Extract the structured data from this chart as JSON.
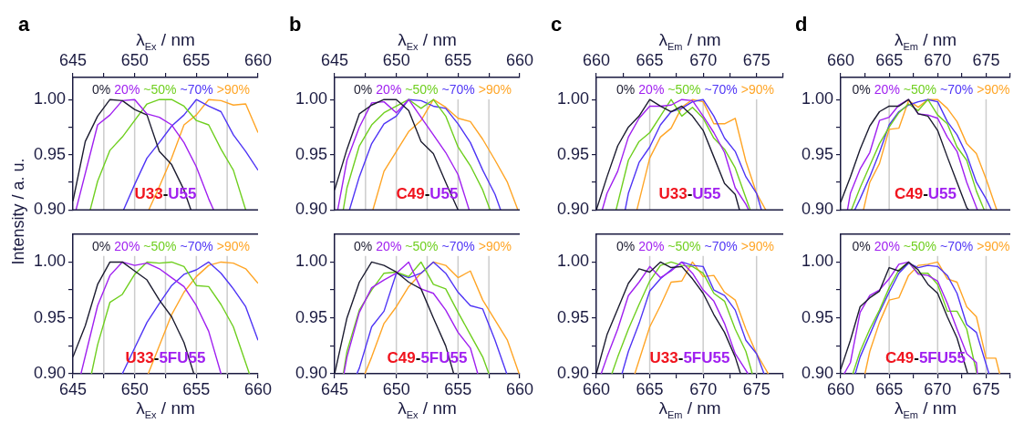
{
  "chart_data": [
    {
      "type": "line",
      "title": "a",
      "xlabel": "λ$_{Ex}$ / nm",
      "ylabel": "Intensity / a. u.",
      "xlim": [
        645,
        660
      ],
      "xticks": [
        645,
        {
          "value": 647.5,
          "label": null
        },
        650,
        {
          "value": 652.5,
          "label": null
        },
        655,
        {
          "value": 657.5,
          "label": null
        },
        660
      ],
      "ylim": [
        0.9,
        1.02
      ],
      "yticks": [
        {
          "value": 0.9,
          "label": "0.90"
        },
        {
          "value": 0.925,
          "label": null
        },
        {
          "value": 0.95,
          "label": "0.95"
        },
        {
          "value": 0.975,
          "label": null
        },
        {
          "value": 1.0,
          "label": "1.00"
        }
      ],
      "legend": "top",
      "marker": "none",
      "annotations": [
        "U33-U55"
      ],
      "ref_lines": [
        {
          "axis": "x",
          "value": 647.5,
          "color": "#cccccc"
        },
        {
          "axis": "x",
          "value": 650,
          "color": "#cccccc"
        },
        {
          "axis": "x",
          "value": 652.5,
          "color": "#cccccc"
        },
        {
          "axis": "x",
          "value": 655,
          "color": "#cccccc"
        },
        {
          "axis": "x",
          "value": 657.5,
          "color": "#cccccc"
        }
      ],
      "series": [
        {
          "name": "0%",
          "color": "#1c1c30",
          "x": [
            645,
            646,
            647,
            648,
            649,
            650,
            651,
            652,
            653,
            654,
            654.56
          ],
          "values": [
            0.908,
            0.962,
            0.985,
            1.0,
            0.999,
            0.991,
            0.986,
            0.953,
            0.941,
            0.918,
            0.9
          ]
        },
        {
          "name": "20%",
          "color": "#a020f0",
          "x": [
            645.25,
            647,
            648,
            649,
            650,
            651,
            652,
            653,
            654,
            655,
            656,
            656.4
          ],
          "values": [
            0.9,
            0.977,
            0.986,
            0.999,
            1.0,
            0.987,
            0.984,
            0.977,
            0.961,
            0.939,
            0.91,
            0.9
          ]
        },
        {
          "name": "~50%",
          "color": "#6fcf1f",
          "x": [
            646.4,
            647,
            648,
            649,
            650,
            651,
            652,
            653,
            654,
            655,
            656,
            657,
            658,
            659
          ],
          "values": [
            0.9,
            0.926,
            0.954,
            0.966,
            0.981,
            0.996,
            1.0,
            1.0,
            0.994,
            0.981,
            0.977,
            0.955,
            0.936,
            0.9
          ]
        },
        {
          "name": "~70%",
          "color": "#4f35f5",
          "x": [
            649.1,
            650,
            651,
            652,
            653,
            654,
            655,
            656,
            657,
            658,
            659,
            660
          ],
          "values": [
            0.9,
            0.923,
            0.947,
            0.961,
            0.976,
            0.986,
            1.0,
            0.994,
            0.989,
            0.968,
            0.953,
            0.936
          ]
        },
        {
          "name": ">90%",
          "color": "#ffa526",
          "x": [
            651.15,
            652,
            653,
            654,
            655,
            656,
            657,
            658,
            659,
            660
          ],
          "values": [
            0.9,
            0.921,
            0.947,
            0.977,
            0.986,
            1.0,
            0.999,
            0.995,
            0.996,
            0.97
          ]
        }
      ]
    },
    {
      "type": "line",
      "xlabel": "λ$_{Ex}$ / nm",
      "xlim": [
        645,
        660
      ],
      "xticks": [
        645,
        {
          "value": 647.5,
          "label": null
        },
        650,
        {
          "value": 652.5,
          "label": null
        },
        655,
        {
          "value": 657.5,
          "label": null
        },
        660
      ],
      "ylim": [
        0.9,
        1.025
      ],
      "yticks": [
        {
          "value": 0.9,
          "label": "0.90"
        },
        {
          "value": 0.925,
          "label": null
        },
        {
          "value": 0.95,
          "label": "0.95"
        },
        {
          "value": 0.975,
          "label": null
        },
        {
          "value": 1.0,
          "label": "1.00"
        }
      ],
      "legend": "top",
      "marker": "none",
      "annotations": [
        "U33-5FU55"
      ],
      "ref_lines": [
        {
          "axis": "x",
          "value": 647.5,
          "color": "#cccccc"
        },
        {
          "axis": "x",
          "value": 650,
          "color": "#cccccc"
        },
        {
          "axis": "x",
          "value": 652.5,
          "color": "#cccccc"
        },
        {
          "axis": "x",
          "value": 655,
          "color": "#cccccc"
        },
        {
          "axis": "x",
          "value": 657.5,
          "color": "#cccccc"
        }
      ],
      "series": [
        {
          "name": "0%",
          "color": "#1c1c30",
          "x": [
            645,
            646,
            647,
            648,
            649,
            650,
            651,
            652,
            653,
            654,
            654.8
          ],
          "values": [
            0.915,
            0.943,
            0.98,
            1.0,
            1.0,
            0.992,
            0.984,
            0.966,
            0.951,
            0.928,
            0.9
          ]
        },
        {
          "name": "20%",
          "color": "#a020f0",
          "x": [
            645.65,
            647,
            648,
            649,
            650,
            651,
            652,
            653,
            654,
            655,
            656,
            657
          ],
          "values": [
            0.9,
            0.961,
            0.988,
            1.0,
            0.997,
            0.999,
            0.994,
            0.986,
            0.978,
            0.961,
            0.938,
            0.9
          ]
        },
        {
          "name": "~50%",
          "color": "#6fcf1f",
          "x": [
            646.5,
            647,
            648,
            649,
            650,
            651,
            652,
            653,
            654,
            655,
            656,
            657,
            658,
            659.3
          ],
          "values": [
            0.9,
            0.926,
            0.964,
            0.971,
            0.989,
            1.0,
            0.999,
            1.0,
            0.996,
            0.979,
            0.978,
            0.962,
            0.942,
            0.9
          ]
        },
        {
          "name": "~70%",
          "color": "#4f35f5",
          "x": [
            649,
            650,
            651,
            652,
            653,
            654,
            655,
            656,
            657,
            658,
            659,
            660
          ],
          "values": [
            0.9,
            0.923,
            0.946,
            0.963,
            0.979,
            0.989,
            0.993,
            1.0,
            0.99,
            0.976,
            0.96,
            0.93
          ]
        },
        {
          "name": ">90%",
          "color": "#ffa526",
          "x": [
            651.1,
            652,
            653,
            654,
            655,
            656,
            657,
            658,
            659,
            660
          ],
          "values": [
            0.9,
            0.925,
            0.953,
            0.973,
            0.987,
            0.997,
            1.0,
            0.999,
            0.994,
            0.981
          ]
        }
      ]
    },
    {
      "type": "line",
      "title": "b",
      "xlabel": "λ$_{Ex}$ / nm",
      "xlim": [
        645,
        660
      ],
      "xticks": [
        645,
        {
          "value": 647.5,
          "label": null
        },
        650,
        {
          "value": 652.5,
          "label": null
        },
        655,
        {
          "value": 657.5,
          "label": null
        },
        660
      ],
      "ylim": [
        0.9,
        1.02
      ],
      "yticks": [
        {
          "value": 0.9,
          "label": "0.90"
        },
        {
          "value": 0.925,
          "label": null
        },
        {
          "value": 0.95,
          "label": "0.95"
        },
        {
          "value": 0.975,
          "label": null
        },
        {
          "value": 1.0,
          "label": "1.00"
        }
      ],
      "legend": "top",
      "marker": "none",
      "annotations": [
        "C49-U55"
      ],
      "ref_lines": [
        {
          "axis": "x",
          "value": 647.5,
          "color": "#cccccc"
        },
        {
          "axis": "x",
          "value": 650,
          "color": "#cccccc"
        },
        {
          "axis": "x",
          "value": 652.5,
          "color": "#cccccc"
        },
        {
          "axis": "x",
          "value": 655,
          "color": "#cccccc"
        },
        {
          "axis": "x",
          "value": 657.5,
          "color": "#cccccc"
        }
      ],
      "series": [
        {
          "name": "0%",
          "color": "#1c1c30",
          "x": [
            645,
            646,
            647,
            648,
            649,
            650,
            651,
            652,
            653,
            654,
            655
          ],
          "values": [
            0.918,
            0.955,
            0.987,
            0.995,
            1.0,
            1.0,
            0.99,
            0.962,
            0.951,
            0.925,
            0.9
          ]
        },
        {
          "name": "20%",
          "color": "#a020f0",
          "x": [
            645.25,
            646,
            647,
            648,
            649,
            650,
            651,
            652,
            653,
            654,
            655,
            655.9
          ],
          "values": [
            0.9,
            0.945,
            0.975,
            0.997,
            0.998,
            0.988,
            1.0,
            0.984,
            0.968,
            0.952,
            0.932,
            0.9
          ]
        },
        {
          "name": "~50%",
          "color": "#6fcf1f",
          "x": [
            645.7,
            646,
            647,
            648,
            649,
            650,
            651,
            652,
            653,
            654,
            655,
            656,
            657,
            657.6
          ],
          "values": [
            0.9,
            0.92,
            0.958,
            0.977,
            0.988,
            0.994,
            1.0,
            0.992,
            1.0,
            0.985,
            0.957,
            0.94,
            0.918,
            0.9
          ]
        },
        {
          "name": "~70%",
          "color": "#4f35f5",
          "x": [
            646.2,
            647,
            648,
            649,
            650,
            651,
            652,
            653,
            654,
            655,
            656,
            657,
            658,
            658.45
          ],
          "values": [
            0.9,
            0.93,
            0.96,
            0.978,
            0.985,
            1.0,
            0.999,
            0.994,
            0.992,
            0.978,
            0.961,
            0.936,
            0.914,
            0.9
          ]
        },
        {
          "name": ">90%",
          "color": "#ffa526",
          "x": [
            648.1,
            649,
            650,
            651,
            652,
            653,
            654,
            655,
            656,
            657,
            658,
            659,
            659.85
          ],
          "values": [
            0.9,
            0.935,
            0.953,
            0.971,
            0.981,
            1.0,
            0.993,
            0.983,
            0.98,
            0.964,
            0.945,
            0.925,
            0.9
          ]
        }
      ]
    },
    {
      "type": "line",
      "xlabel": "λ$_{Ex}$ / nm",
      "xlim": [
        645,
        660
      ],
      "xticks": [
        645,
        {
          "value": 647.5,
          "label": null
        },
        650,
        {
          "value": 652.5,
          "label": null
        },
        655,
        {
          "value": 657.5,
          "label": null
        },
        660
      ],
      "ylim": [
        0.9,
        1.025
      ],
      "yticks": [
        {
          "value": 0.9,
          "label": "0.90"
        },
        {
          "value": 0.925,
          "label": null
        },
        {
          "value": 0.95,
          "label": "0.95"
        },
        {
          "value": 0.975,
          "label": null
        },
        {
          "value": 1.0,
          "label": "1.00"
        }
      ],
      "legend": "top",
      "marker": "none",
      "annotations": [
        "C49-5FU55"
      ],
      "ref_lines": [
        {
          "axis": "x",
          "value": 647.5,
          "color": "#cccccc"
        },
        {
          "axis": "x",
          "value": 650,
          "color": "#cccccc"
        },
        {
          "axis": "x",
          "value": 652.5,
          "color": "#cccccc"
        },
        {
          "axis": "x",
          "value": 655,
          "color": "#cccccc"
        },
        {
          "axis": "x",
          "value": 657.5,
          "color": "#cccccc"
        }
      ],
      "series": [
        {
          "name": "0%",
          "color": "#1c1c30",
          "x": [
            645,
            646,
            647,
            648,
            649,
            650,
            651,
            652,
            653,
            654,
            654.65
          ],
          "values": [
            0.9,
            0.95,
            0.982,
            1.0,
            0.997,
            0.991,
            0.982,
            0.976,
            0.95,
            0.925,
            0.9
          ]
        },
        {
          "name": "20%",
          "color": "#a020f0",
          "x": [
            645.75,
            646,
            647,
            648,
            649,
            650,
            651,
            652,
            653,
            654,
            655,
            656,
            656.6
          ],
          "values": [
            0.9,
            0.915,
            0.955,
            0.977,
            0.984,
            0.99,
            1.0,
            0.976,
            0.972,
            0.957,
            0.937,
            0.923,
            0.9
          ]
        },
        {
          "name": "~50%",
          "color": "#6fcf1f",
          "x": [
            645.7,
            646,
            647,
            648,
            649,
            650,
            651,
            652,
            653,
            654,
            655,
            656,
            657,
            657.5
          ],
          "values": [
            0.9,
            0.92,
            0.957,
            0.975,
            0.99,
            0.991,
            0.987,
            1.0,
            0.98,
            0.976,
            0.955,
            0.935,
            0.915,
            0.9
          ]
        },
        {
          "name": "~70%",
          "color": "#4f35f5",
          "x": [
            646.8,
            647,
            648,
            649,
            650,
            651,
            652,
            653,
            654,
            655,
            656,
            657,
            658,
            658.95
          ],
          "values": [
            0.9,
            0.905,
            0.942,
            0.956,
            0.99,
            0.986,
            0.99,
            1.0,
            0.99,
            0.973,
            0.961,
            0.958,
            0.93,
            0.9
          ]
        },
        {
          "name": ">90%",
          "color": "#ffa526",
          "x": [
            647.45,
            648,
            649,
            650,
            651,
            652,
            653,
            654,
            655,
            656,
            657,
            658,
            659,
            659.95
          ],
          "values": [
            0.9,
            0.915,
            0.945,
            0.96,
            0.978,
            0.99,
            1.0,
            0.997,
            0.986,
            0.992,
            0.966,
            0.948,
            0.93,
            0.9
          ]
        }
      ]
    },
    {
      "type": "line",
      "title": "c",
      "xlabel": "λ$_{Em}$ / nm",
      "xlim": [
        660,
        677.5
      ],
      "xticks": [
        660,
        {
          "value": 662.5,
          "label": null
        },
        665,
        {
          "value": 667.5,
          "label": null
        },
        670,
        {
          "value": 672.5,
          "label": null
        },
        675,
        {
          "value": 677.5,
          "label": null
        }
      ],
      "ylim": [
        0.9,
        1.02
      ],
      "yticks": [
        {
          "value": 0.9,
          "label": "0.90"
        },
        {
          "value": 0.925,
          "label": null
        },
        {
          "value": 0.95,
          "label": "0.95"
        },
        {
          "value": 0.975,
          "label": null
        },
        {
          "value": 1.0,
          "label": "1.00"
        }
      ],
      "legend": "top",
      "marker": "none",
      "annotations": [
        "U33-U55"
      ],
      "ref_lines": [
        {
          "axis": "x",
          "value": 665,
          "color": "#cccccc"
        },
        {
          "axis": "x",
          "value": 670,
          "color": "#cccccc"
        },
        {
          "axis": "x",
          "value": 675,
          "color": "#cccccc"
        }
      ],
      "series": [
        {
          "name": "0%",
          "color": "#1c1c30",
          "x": [
            660,
            661,
            662,
            663,
            664,
            665,
            666,
            667,
            668,
            669,
            670,
            671,
            672,
            673,
            673.4
          ],
          "values": [
            0.9,
            0.93,
            0.958,
            0.975,
            0.985,
            1.0,
            0.994,
            0.989,
            0.994,
            0.985,
            0.972,
            0.948,
            0.924,
            0.914,
            0.9
          ]
        },
        {
          "name": "20%",
          "color": "#a020f0",
          "x": [
            660.55,
            661,
            662,
            663,
            664,
            665,
            666,
            667,
            668,
            669,
            670,
            671,
            672,
            673,
            674,
            674.25
          ],
          "values": [
            0.9,
            0.915,
            0.935,
            0.966,
            0.983,
            0.994,
            0.994,
            0.995,
            1.0,
            0.999,
            0.985,
            0.97,
            0.952,
            0.92,
            0.905,
            0.9
          ]
        },
        {
          "name": "~50%",
          "color": "#6fcf1f",
          "x": [
            661.85,
            663,
            664,
            665,
            666,
            667,
            668,
            669,
            670,
            671,
            672,
            673,
            674.4
          ],
          "values": [
            0.9,
            0.945,
            0.962,
            0.97,
            0.985,
            1.0,
            0.985,
            0.993,
            0.983,
            0.965,
            0.955,
            0.938,
            0.9
          ]
        },
        {
          "name": "~70%",
          "color": "#4f35f5",
          "x": [
            662.7,
            663,
            664,
            665,
            666,
            667,
            668,
            669,
            670,
            671,
            672,
            673,
            674,
            675,
            675.45
          ],
          "values": [
            0.9,
            0.915,
            0.943,
            0.957,
            0.977,
            0.989,
            0.992,
            0.998,
            1.0,
            0.985,
            0.965,
            0.953,
            0.93,
            0.915,
            0.9
          ]
        },
        {
          "name": ">90%",
          "color": "#ffa526",
          "x": [
            663.8,
            665,
            666,
            667,
            668,
            669,
            670,
            671,
            672,
            673,
            674,
            675,
            675.85
          ],
          "values": [
            0.9,
            0.947,
            0.966,
            0.974,
            0.993,
            1.0,
            0.998,
            0.978,
            0.978,
            0.983,
            0.944,
            0.915,
            0.9
          ]
        }
      ]
    },
    {
      "type": "line",
      "xlabel": "λ$_{Em}$ / nm",
      "xlim": [
        660,
        677.5
      ],
      "xticks": [
        660,
        {
          "value": 662.5,
          "label": null
        },
        665,
        {
          "value": 667.5,
          "label": null
        },
        670,
        {
          "value": 672.5,
          "label": null
        },
        675,
        {
          "value": 677.5,
          "label": null
        }
      ],
      "ylim": [
        0.9,
        1.025
      ],
      "yticks": [
        {
          "value": 0.9,
          "label": "0.90"
        },
        {
          "value": 0.925,
          "label": null
        },
        {
          "value": 0.95,
          "label": "0.95"
        },
        {
          "value": 0.975,
          "label": null
        },
        {
          "value": 1.0,
          "label": "1.00"
        }
      ],
      "legend": "top",
      "marker": "none",
      "annotations": [
        "U33-5FU55"
      ],
      "ref_lines": [
        {
          "axis": "x",
          "value": 665,
          "color": "#cccccc"
        },
        {
          "axis": "x",
          "value": 670,
          "color": "#cccccc"
        },
        {
          "axis": "x",
          "value": 675,
          "color": "#cccccc"
        }
      ],
      "series": [
        {
          "name": "0%",
          "color": "#1c1c30",
          "x": [
            660,
            661,
            662,
            663,
            664,
            665,
            666,
            667,
            668,
            669,
            670,
            671,
            672,
            673,
            673.5
          ],
          "values": [
            0.9,
            0.935,
            0.958,
            0.981,
            0.994,
            0.991,
            1.0,
            0.995,
            0.996,
            0.985,
            0.972,
            0.953,
            0.937,
            0.915,
            0.9
          ]
        },
        {
          "name": "20%",
          "color": "#a020f0",
          "x": [
            660.45,
            661,
            662,
            663,
            664,
            665,
            666,
            667,
            668,
            669,
            670,
            671,
            672,
            673,
            674.2
          ],
          "values": [
            0.9,
            0.915,
            0.94,
            0.97,
            0.982,
            0.996,
            0.986,
            0.992,
            1.0,
            0.99,
            0.975,
            0.965,
            0.945,
            0.918,
            0.9
          ]
        },
        {
          "name": "~50%",
          "color": "#6fcf1f",
          "x": [
            661.45,
            662,
            663,
            664,
            665,
            666,
            667,
            668,
            669,
            670,
            671,
            672,
            673,
            674,
            674.6
          ],
          "values": [
            0.9,
            0.915,
            0.94,
            0.962,
            0.983,
            0.997,
            1.0,
            0.997,
            0.996,
            0.99,
            0.972,
            0.965,
            0.94,
            0.92,
            0.9
          ]
        },
        {
          "name": "~70%",
          "color": "#4f35f5",
          "x": [
            662.4,
            663,
            664,
            665,
            666,
            667,
            668,
            669,
            670,
            671,
            672,
            673,
            674,
            675,
            675.7
          ],
          "values": [
            0.9,
            0.92,
            0.945,
            0.974,
            0.985,
            0.993,
            1.0,
            0.997,
            0.996,
            0.975,
            0.97,
            0.957,
            0.93,
            0.918,
            0.9
          ]
        },
        {
          "name": ">90%",
          "color": "#ffa526",
          "x": [
            663.6,
            665,
            666,
            667,
            668,
            669,
            670,
            671,
            672,
            673,
            674,
            675,
            676.1
          ],
          "values": [
            0.9,
            0.942,
            0.961,
            0.982,
            0.983,
            1.0,
            0.987,
            0.988,
            0.973,
            0.966,
            0.94,
            0.918,
            0.9
          ]
        }
      ]
    },
    {
      "type": "line",
      "title": "d",
      "xlabel": "λ$_{Em}$ / nm",
      "xlim": [
        660,
        677.5
      ],
      "xticks": [
        660,
        {
          "value": 662.5,
          "label": null
        },
        665,
        {
          "value": 667.5,
          "label": null
        },
        670,
        {
          "value": 672.5,
          "label": null
        },
        675,
        {
          "value": 677.5,
          "label": null
        }
      ],
      "ylim": [
        0.9,
        1.02
      ],
      "yticks": [
        {
          "value": 0.9,
          "label": "0.90"
        },
        {
          "value": 0.925,
          "label": null
        },
        {
          "value": 0.95,
          "label": "0.95"
        },
        {
          "value": 0.975,
          "label": null
        },
        {
          "value": 1.0,
          "label": "1.00"
        }
      ],
      "legend": "top",
      "marker": "none",
      "annotations": [
        "C49-U55"
      ],
      "ref_lines": [
        {
          "axis": "x",
          "value": 665,
          "color": "#cccccc"
        },
        {
          "axis": "x",
          "value": 670,
          "color": "#cccccc"
        },
        {
          "axis": "x",
          "value": 675,
          "color": "#cccccc"
        }
      ],
      "series": [
        {
          "name": "0%",
          "color": "#1c1c30",
          "x": [
            660,
            661,
            662,
            663,
            664,
            665,
            666,
            667,
            668,
            669,
            670,
            671,
            672,
            673,
            673.2
          ],
          "values": [
            0.907,
            0.93,
            0.955,
            0.976,
            0.989,
            0.994,
            0.994,
            1.0,
            0.987,
            0.985,
            0.972,
            0.948,
            0.925,
            0.902,
            0.9
          ]
        },
        {
          "name": "20%",
          "color": "#a020f0",
          "x": [
            660.7,
            661,
            662,
            663,
            664,
            665,
            666,
            667,
            668,
            669,
            670,
            671,
            672,
            673,
            674.1
          ],
          "values": [
            0.9,
            0.915,
            0.937,
            0.952,
            0.981,
            0.984,
            0.995,
            1.0,
            0.987,
            0.986,
            0.983,
            0.966,
            0.953,
            0.925,
            0.9
          ]
        },
        {
          "name": "~50%",
          "color": "#6fcf1f",
          "x": [
            661.1,
            662,
            663,
            664,
            665,
            666,
            667,
            668,
            669,
            670,
            671,
            672,
            673,
            674,
            674.8
          ],
          "values": [
            0.9,
            0.92,
            0.94,
            0.96,
            0.975,
            0.988,
            0.996,
            0.99,
            1.0,
            0.986,
            0.978,
            0.957,
            0.945,
            0.917,
            0.9
          ]
        },
        {
          "name": "~70%",
          "color": "#4f35f5",
          "x": [
            661.45,
            662,
            663,
            664,
            665,
            666,
            667,
            668,
            669,
            670,
            671,
            672,
            673,
            674,
            675,
            675.55
          ],
          "values": [
            0.9,
            0.91,
            0.93,
            0.952,
            0.977,
            0.989,
            0.995,
            0.998,
            1.0,
            0.998,
            0.98,
            0.968,
            0.95,
            0.925,
            0.91,
            0.9
          ]
        },
        {
          "name": ">90%",
          "color": "#ffa526",
          "x": [
            662.35,
            663,
            664,
            665,
            666,
            667,
            668,
            669,
            670,
            671,
            672,
            673,
            674,
            675,
            676.1
          ],
          "values": [
            0.9,
            0.925,
            0.942,
            0.973,
            0.974,
            0.999,
            0.993,
            1.0,
            1.0,
            0.992,
            0.98,
            0.96,
            0.951,
            0.928,
            0.9
          ]
        }
      ]
    },
    {
      "type": "line",
      "xlabel": "λ$_{Em}$ / nm",
      "xlim": [
        660,
        677.5
      ],
      "xticks": [
        660,
        {
          "value": 662.5,
          "label": null
        },
        665,
        {
          "value": 667.5,
          "label": null
        },
        670,
        {
          "value": 672.5,
          "label": null
        },
        675,
        {
          "value": 677.5,
          "label": null
        }
      ],
      "ylim": [
        0.9,
        1.025
      ],
      "yticks": [
        {
          "value": 0.9,
          "label": "0.90"
        },
        {
          "value": 0.925,
          "label": null
        },
        {
          "value": 0.95,
          "label": "0.95"
        },
        {
          "value": 0.975,
          "label": null
        },
        {
          "value": 1.0,
          "label": "1.00"
        }
      ],
      "legend": "top",
      "marker": "none",
      "annotations": [
        "C49-5FU55"
      ],
      "ref_lines": [
        {
          "axis": "x",
          "value": 665,
          "color": "#cccccc"
        },
        {
          "axis": "x",
          "value": 670,
          "color": "#cccccc"
        },
        {
          "axis": "x",
          "value": 675,
          "color": "#cccccc"
        }
      ],
      "series": [
        {
          "name": "0%",
          "color": "#1c1c30",
          "x": [
            660,
            661,
            662,
            663,
            664,
            665,
            666,
            667,
            668,
            669,
            670,
            671,
            672,
            673,
            673.1
          ],
          "values": [
            0.904,
            0.93,
            0.96,
            0.968,
            0.974,
            0.995,
            0.992,
            1.0,
            0.993,
            0.98,
            0.972,
            0.951,
            0.932,
            0.903,
            0.9
          ]
        },
        {
          "name": "20%",
          "color": "#a020f0",
          "x": [
            660.35,
            661,
            662,
            663,
            664,
            665,
            666,
            667,
            668,
            669,
            670,
            671,
            672,
            673,
            674,
            674.1
          ],
          "values": [
            0.9,
            0.91,
            0.955,
            0.97,
            0.975,
            0.985,
            0.998,
            1.0,
            0.989,
            0.988,
            0.983,
            0.963,
            0.94,
            0.918,
            0.91,
            0.9
          ]
        },
        {
          "name": "~50%",
          "color": "#6fcf1f",
          "x": [
            661.25,
            662,
            663,
            664,
            665,
            666,
            667,
            668,
            669,
            670,
            671,
            672,
            673,
            674.05
          ],
          "values": [
            0.9,
            0.92,
            0.94,
            0.957,
            0.977,
            0.993,
            1.0,
            0.99,
            0.99,
            0.98,
            0.956,
            0.956,
            0.94,
            0.9
          ]
        },
        {
          "name": "~70%",
          "color": "#4f35f5",
          "x": [
            661.5,
            662,
            663,
            664,
            665,
            666,
            667,
            668,
            669,
            670,
            671,
            672,
            673,
            674,
            675.3
          ],
          "values": [
            0.9,
            0.915,
            0.935,
            0.955,
            0.973,
            0.99,
            0.999,
            0.995,
            0.997,
            0.996,
            0.988,
            0.972,
            0.944,
            0.937,
            0.9
          ]
        },
        {
          "name": ">90%",
          "color": "#ffa526",
          "x": [
            662.5,
            663,
            664,
            665,
            666,
            667,
            668,
            669,
            670,
            671,
            672,
            673,
            674,
            675,
            676,
            676.4
          ],
          "values": [
            0.9,
            0.92,
            0.946,
            0.966,
            0.968,
            0.988,
            0.997,
            0.998,
            1.0,
            0.985,
            0.982,
            0.96,
            0.951,
            0.914,
            0.914,
            0.9
          ]
        }
      ]
    }
  ]
}
